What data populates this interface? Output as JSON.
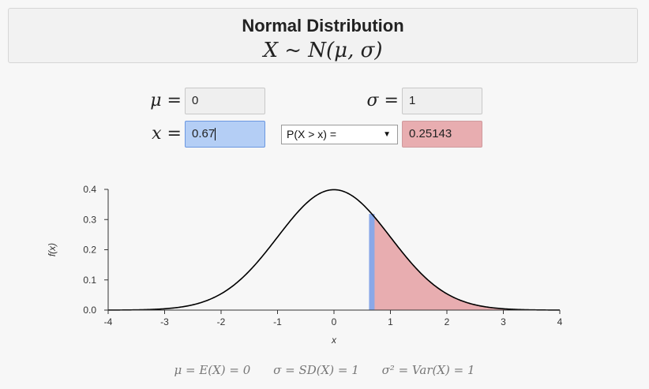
{
  "header": {
    "title": "Normal Distribution",
    "formula": "X ~ N(μ, σ)"
  },
  "params": {
    "mu_label": "μ =",
    "mu_value": "0",
    "sigma_label": "σ =",
    "sigma_value": "1",
    "x_label": "x =",
    "x_value": "0.67",
    "mode_selected": "P(X > x) =",
    "result_value": "0.25143"
  },
  "colors": {
    "accent_blue": "#8aa8e8",
    "shade_red": "#e8adb0",
    "curve": "#000000"
  },
  "chart_data": {
    "type": "area",
    "xlabel": "x",
    "ylabel": "f(x)",
    "xlim": [
      -4,
      4
    ],
    "ylim": [
      0,
      0.4
    ],
    "x_ticks": [
      "-4",
      "-3",
      "-2",
      "-1",
      "0",
      "1",
      "2",
      "3",
      "4"
    ],
    "y_ticks": [
      "0.0",
      "0.1",
      "0.2",
      "0.3",
      "0.4"
    ],
    "mu": 0,
    "sigma": 1,
    "x_marker": 0.67,
    "shaded_region": [
      0.67,
      4
    ]
  },
  "footer": {
    "mean": "μ = E(X) = 0",
    "sd": "σ = SD(X) = 1",
    "var": "σ² = Var(X) = 1"
  }
}
